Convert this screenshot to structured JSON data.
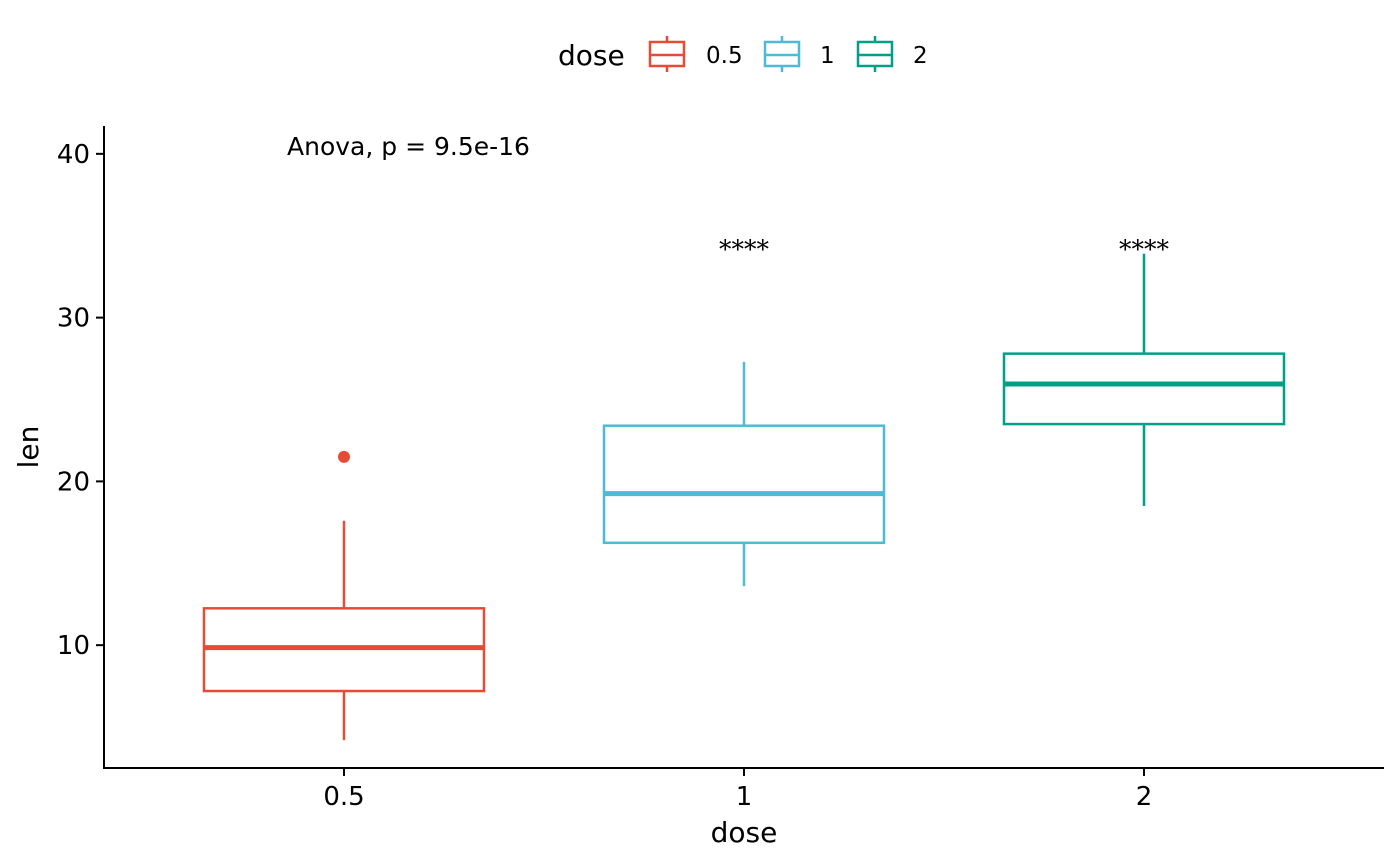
{
  "chart_data": {
    "type": "boxplot",
    "xlabel": "dose",
    "ylabel": "len",
    "ylim": [
      2.5,
      41.7
    ],
    "yticks": [
      10,
      20,
      30,
      40
    ],
    "categories": [
      "0.5",
      "1",
      "2"
    ],
    "grid": false,
    "legend": {
      "title": "dose",
      "position": "top",
      "items": [
        {
          "label": "0.5",
          "color": "#E64B35"
        },
        {
          "label": "1",
          "color": "#4DBBD5"
        },
        {
          "label": "2",
          "color": "#00A087"
        }
      ]
    },
    "series": [
      {
        "category": "0.5",
        "color": "#E64B35",
        "whisker_low": 4.2,
        "q1": 7.2,
        "median": 9.85,
        "q3": 12.25,
        "whisker_high": 17.6,
        "outliers": [
          21.5
        ]
      },
      {
        "category": "1",
        "color": "#4DBBD5",
        "whisker_low": 13.6,
        "q1": 16.25,
        "median": 19.25,
        "q3": 23.4,
        "whisker_high": 27.3,
        "outliers": []
      },
      {
        "category": "2",
        "color": "#00A087",
        "whisker_low": 18.5,
        "q1": 23.5,
        "median": 25.95,
        "q3": 27.8,
        "whisker_high": 33.9,
        "outliers": []
      }
    ],
    "annotations": {
      "test_label": "Anova, p = 9.5e-16",
      "significance": [
        {
          "category": "1",
          "label": "****",
          "y": 34.5
        },
        {
          "category": "2",
          "label": "****",
          "y": 34.5
        }
      ]
    }
  }
}
